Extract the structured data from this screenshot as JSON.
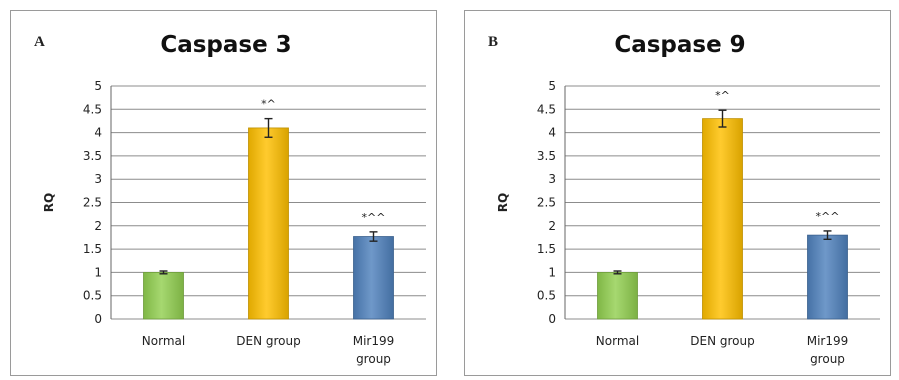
{
  "chart_data": [
    {
      "type": "bar",
      "panel_label": "A",
      "title": "Caspase 3",
      "ylabel": "RQ",
      "xlabel": "",
      "ylim": [
        0,
        5
      ],
      "yticks": [
        "0",
        "0.5",
        "1",
        "1.5",
        "2",
        "2.5",
        "3",
        "3.5",
        "4",
        "4.5",
        "5"
      ],
      "categories": [
        [
          "Normal"
        ],
        [
          "DEN group"
        ],
        [
          "Mir199",
          "group"
        ]
      ],
      "values": [
        1.0,
        4.1,
        1.77
      ],
      "errors": [
        0.03,
        0.2,
        0.1
      ],
      "annotations": [
        "",
        "*^",
        "*^^"
      ],
      "colors": [
        "#92d050",
        "#ffc000",
        "#4f81bd"
      ],
      "grid": true,
      "legend": "none"
    },
    {
      "type": "bar",
      "panel_label": "B",
      "title": "Caspase 9",
      "ylabel": "RQ",
      "xlabel": "",
      "ylim": [
        0,
        5
      ],
      "yticks": [
        "0",
        "0.5",
        "1",
        "1.5",
        "2",
        "2.5",
        "3",
        "3.5",
        "4",
        "4.5",
        "5"
      ],
      "categories": [
        [
          "Normal"
        ],
        [
          "DEN group"
        ],
        [
          "Mir199",
          "group"
        ]
      ],
      "values": [
        1.0,
        4.3,
        1.8
      ],
      "errors": [
        0.03,
        0.18,
        0.09
      ],
      "annotations": [
        "",
        "*^",
        "*^^"
      ],
      "colors": [
        "#92d050",
        "#ffc000",
        "#4f81bd"
      ],
      "grid": true,
      "legend": "none"
    }
  ]
}
